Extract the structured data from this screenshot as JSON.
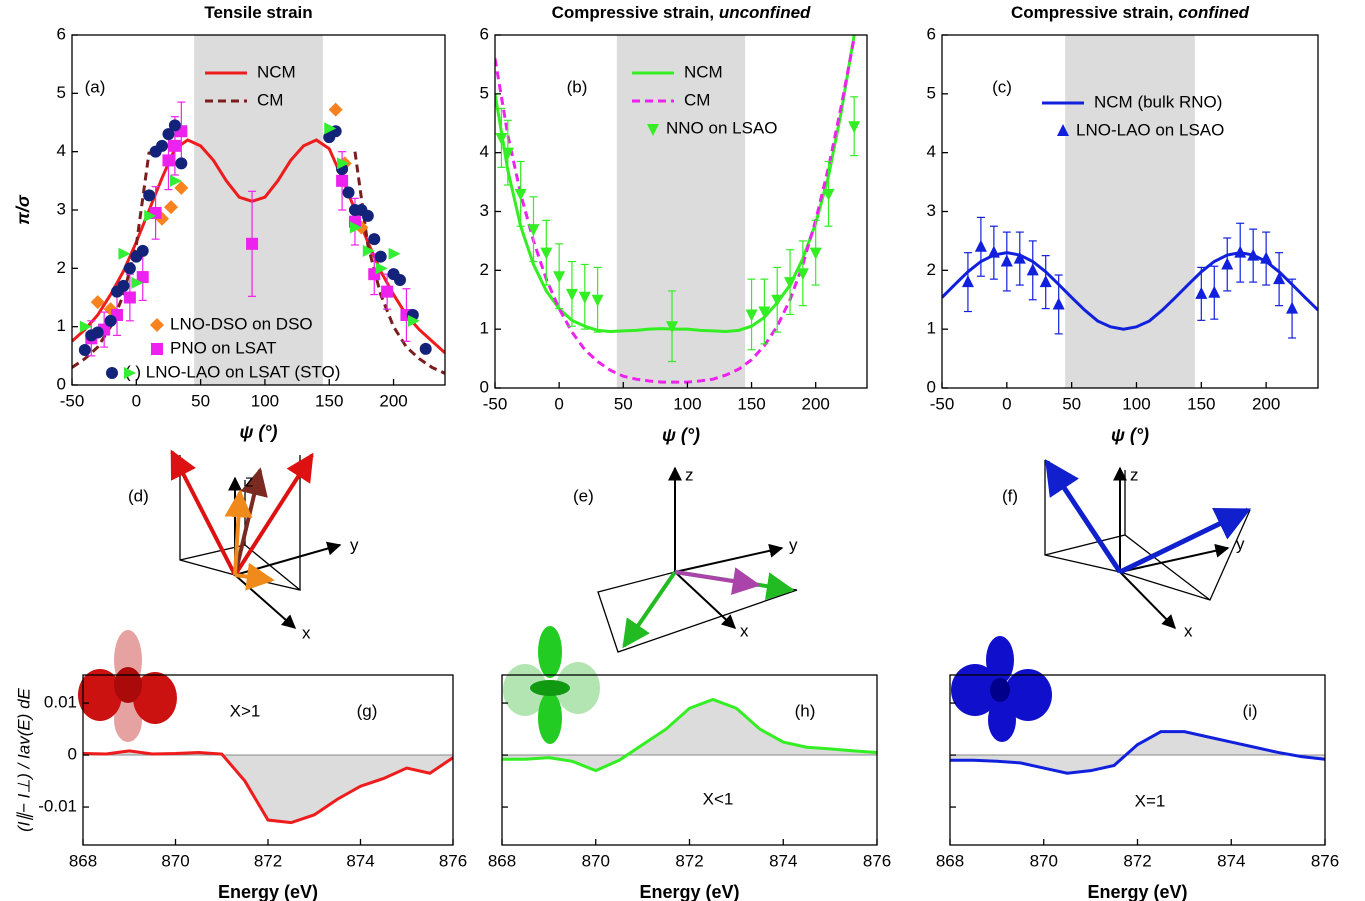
{
  "chart_data": [
    {
      "type": "line",
      "title": "Tensile strain",
      "panel_label": "(a)",
      "x_label": "ψ (°)",
      "y_label": "π/σ",
      "xlim": [
        -50,
        240
      ],
      "ylim": [
        0,
        6
      ],
      "xticks": [
        -50,
        0,
        50,
        100,
        150,
        200
      ],
      "yticks": [
        0,
        1,
        2,
        3,
        4,
        5,
        6
      ],
      "shade": [
        45,
        145
      ],
      "shade_color": "#dcdcdc",
      "x": [
        -50,
        -40,
        -30,
        -20,
        -10,
        0,
        10,
        20,
        30,
        40,
        50,
        60,
        70,
        80,
        90,
        100,
        110,
        120,
        130,
        140,
        150,
        160,
        170,
        180,
        190,
        200,
        210,
        220,
        230,
        240
      ],
      "series": [
        {
          "name": "NCM",
          "color": "#ee1c1c",
          "values": [
            0.75,
            0.95,
            1.2,
            1.55,
            1.95,
            2.45,
            3.0,
            3.55,
            4.05,
            4.2,
            4.1,
            3.85,
            3.5,
            3.22,
            3.15,
            3.22,
            3.5,
            3.85,
            4.1,
            4.2,
            4.05,
            3.55,
            3.0,
            2.45,
            1.95,
            1.55,
            1.2,
            0.95,
            0.75,
            0.55
          ]
        },
        {
          "name": "CM",
          "color": "#7b1d1d",
          "dash": true,
          "values": [
            0.3,
            0.45,
            0.65,
            1.0,
            1.55,
            2.4,
            4.0,
            null,
            null,
            null,
            null,
            null,
            null,
            null,
            null,
            null,
            null,
            null,
            null,
            null,
            null,
            null,
            4.0,
            2.4,
            1.55,
            1.0,
            0.65,
            0.45,
            0.3,
            0.2
          ]
        },
        {
          "name": "LNO-DSO on DSO",
          "color": "#f7821e",
          "marker": "diamond",
          "x": [
            -30,
            -20,
            20,
            27,
            35,
            155,
            162,
            175
          ],
          "values": [
            1.42,
            1.3,
            2.85,
            3.05,
            3.38,
            4.72,
            3.8,
            2.7
          ]
        },
        {
          "name": "PNO on LSAT",
          "color": "#ee22ee",
          "marker": "square",
          "x": [
            -35,
            -25,
            -15,
            -5,
            5,
            15,
            25,
            30,
            35,
            90,
            160,
            170,
            185,
            195,
            210
          ],
          "values": [
            0.8,
            0.95,
            1.2,
            1.5,
            1.85,
            2.95,
            3.85,
            4.1,
            4.35,
            2.42,
            3.5,
            2.8,
            1.9,
            1.6,
            1.2
          ],
          "errors": [
            0.3,
            0.3,
            0.35,
            0.4,
            0.4,
            0.45,
            0.5,
            0.5,
            0.5,
            0.9,
            0.5,
            0.4,
            0.35,
            0.3,
            0.45
          ]
        },
        {
          "name": "(    ) LNO-LAO on LSAT (STO)",
          "color": "#13237a",
          "marker": "circle",
          "x": [
            -40,
            -35,
            -30,
            -20,
            -15,
            -10,
            -5,
            0,
            5,
            10,
            15,
            20,
            25,
            30,
            35,
            150,
            155,
            160,
            165,
            170,
            175,
            180,
            185,
            190,
            200,
            205,
            215,
            225
          ],
          "values": [
            0.6,
            0.85,
            0.9,
            1.1,
            1.6,
            1.7,
            2.0,
            2.2,
            2.3,
            3.25,
            4.0,
            4.1,
            4.3,
            4.45,
            3.8,
            4.25,
            4.35,
            3.7,
            3.3,
            3.0,
            3.0,
            2.9,
            2.5,
            2.2,
            1.9,
            1.8,
            1.2,
            0.62
          ]
        },
        {
          "color": "#33ee33",
          "marker": "triangle-right",
          "x": [
            -40,
            -10,
            0,
            10,
            30,
            150,
            160,
            170,
            180,
            190,
            200,
            215
          ],
          "values": [
            1.0,
            2.25,
            1.75,
            2.9,
            3.5,
            4.4,
            3.8,
            2.7,
            2.3,
            2.0,
            2.25,
            1.1
          ]
        }
      ]
    },
    {
      "type": "line",
      "title": "Compressive strain, ",
      "title_emphasis": "unconfined",
      "panel_label": "(b)",
      "x_label": "ψ (°)",
      "xlim": [
        -50,
        240
      ],
      "ylim": [
        0,
        6
      ],
      "xticks": [
        -50,
        0,
        50,
        100,
        150,
        200
      ],
      "yticks": [
        0,
        1,
        2,
        3,
        4,
        5,
        6
      ],
      "shade": [
        45,
        145
      ],
      "shade_color": "#dcdcdc",
      "x": [
        -50,
        -40,
        -30,
        -20,
        -10,
        0,
        10,
        20,
        30,
        40,
        50,
        60,
        70,
        80,
        90,
        100,
        110,
        120,
        130,
        140,
        150,
        160,
        170,
        180,
        190,
        200,
        210,
        220,
        230,
        240
      ],
      "series": [
        {
          "name": "NCM",
          "color": "#33ee22",
          "values": [
            5.0,
            3.7,
            2.75,
            2.1,
            1.65,
            1.35,
            1.15,
            1.05,
            0.98,
            0.96,
            0.97,
            0.98,
            1.0,
            1.01,
            1.0,
            1.0,
            0.98,
            0.97,
            0.96,
            0.98,
            1.05,
            1.2,
            1.45,
            1.75,
            2.2,
            2.8,
            3.6,
            4.7,
            6.0,
            null
          ]
        },
        {
          "name": "CM",
          "color": "#ee22ee",
          "dash": true,
          "values": [
            5.6,
            4.3,
            3.3,
            2.5,
            1.85,
            1.35,
            0.95,
            0.65,
            0.45,
            0.3,
            0.2,
            0.15,
            0.12,
            0.1,
            0.1,
            0.1,
            0.12,
            0.15,
            0.22,
            0.32,
            0.48,
            0.72,
            1.05,
            1.5,
            2.1,
            2.85,
            3.75,
            4.8,
            5.95,
            null
          ]
        },
        {
          "name": "NNO on LSAO",
          "color": "#33ee22",
          "marker": "triangle-down",
          "x": [
            -45,
            -40,
            -30,
            -20,
            -10,
            0,
            10,
            20,
            30,
            88,
            150,
            160,
            170,
            180,
            190,
            200,
            210,
            230
          ],
          "values": [
            4.25,
            4.0,
            3.3,
            2.7,
            2.3,
            1.9,
            1.6,
            1.55,
            1.5,
            1.05,
            1.25,
            1.3,
            1.5,
            1.8,
            1.95,
            2.3,
            3.3,
            4.45
          ],
          "errors": [
            0.5,
            0.55,
            0.55,
            0.55,
            0.55,
            0.55,
            0.55,
            0.55,
            0.55,
            0.6,
            0.6,
            0.55,
            0.55,
            0.55,
            0.55,
            0.55,
            0.55,
            0.5
          ]
        }
      ]
    },
    {
      "type": "line",
      "title": "Compressive strain, ",
      "title_emphasis": "confined",
      "panel_label": "(c)",
      "x_label": "ψ (°)",
      "xlim": [
        -50,
        240
      ],
      "ylim": [
        0,
        6
      ],
      "xticks": [
        -50,
        0,
        50,
        100,
        150,
        200
      ],
      "yticks": [
        0,
        1,
        2,
        3,
        4,
        5,
        6
      ],
      "shade": [
        45,
        145
      ],
      "shade_color": "#dcdcdc",
      "x": [
        -50,
        -40,
        -30,
        -20,
        -10,
        0,
        10,
        20,
        30,
        40,
        50,
        60,
        70,
        80,
        90,
        100,
        110,
        120,
        130,
        140,
        150,
        160,
        170,
        180,
        190,
        200,
        210,
        220,
        230,
        240
      ],
      "series": [
        {
          "name": "NCM (bulk RNO)",
          "color": "#1020dd",
          "values": [
            1.54,
            1.76,
            1.975,
            2.15,
            2.26,
            2.3,
            2.26,
            2.15,
            1.975,
            1.76,
            1.54,
            1.325,
            1.14,
            1.04,
            1.0,
            1.04,
            1.14,
            1.325,
            1.54,
            1.76,
            1.975,
            2.15,
            2.26,
            2.3,
            2.26,
            2.15,
            1.975,
            1.76,
            1.54,
            1.325
          ]
        },
        {
          "name": "LNO-LAO on LSAO",
          "color": "#1020dd",
          "marker": "triangle-up",
          "x": [
            -30,
            -20,
            -10,
            0,
            10,
            20,
            30,
            40,
            150,
            160,
            170,
            180,
            190,
            200,
            210,
            220
          ],
          "values": [
            1.8,
            2.4,
            2.3,
            2.15,
            2.2,
            2.0,
            1.8,
            1.42,
            1.6,
            1.62,
            2.1,
            2.3,
            2.25,
            2.2,
            1.85,
            1.35
          ],
          "errors": [
            0.5,
            0.5,
            0.45,
            0.5,
            0.45,
            0.5,
            0.45,
            0.5,
            0.45,
            0.45,
            0.45,
            0.5,
            0.45,
            0.45,
            0.45,
            0.5
          ]
        }
      ]
    },
    {
      "type": "line",
      "panel_label": "(g)",
      "annotation": "X>1",
      "x_label": "Energy (eV)",
      "y_label": "(I∥− I⊥) / Iav(E) dE",
      "xlim": [
        868,
        876
      ],
      "ylim": [
        -0.0173,
        0.0154
      ],
      "xticks": [
        868,
        870,
        872,
        874,
        876
      ],
      "yticks": [
        -0.01,
        0,
        0.01
      ],
      "fill_to": 0,
      "fill_color": "#dcdcdc",
      "x": [
        868,
        868.5,
        869,
        869.5,
        870,
        870.5,
        871,
        871.5,
        872,
        872.5,
        873,
        873.5,
        874,
        874.5,
        875,
        875.5,
        876
      ],
      "series": [
        {
          "color": "#ee1c1c",
          "values": [
            0.0003,
            0.0002,
            0.0008,
            0.0002,
            0.0003,
            0.0005,
            0.0002,
            -0.005,
            -0.0125,
            -0.013,
            -0.0115,
            -0.0085,
            -0.006,
            -0.0045,
            -0.0025,
            -0.0035,
            -0.0005
          ]
        }
      ]
    },
    {
      "type": "line",
      "panel_label": "(h)",
      "annotation": "X<1",
      "x_label": "Energy (eV)",
      "ytick_labels": false,
      "xlim": [
        868,
        876
      ],
      "ylim": [
        -0.0173,
        0.0154
      ],
      "xticks": [
        868,
        870,
        872,
        874,
        876
      ],
      "yticks": [
        -0.01,
        0,
        0.01
      ],
      "fill_to": 0,
      "fill_color": "#dcdcdc",
      "x": [
        868,
        868.5,
        869,
        869.5,
        870,
        870.5,
        871,
        871.5,
        872,
        872.5,
        873,
        873.5,
        874,
        874.5,
        875,
        875.5,
        876
      ],
      "series": [
        {
          "color": "#33ee22",
          "values": [
            -0.0008,
            -0.0008,
            -0.0005,
            -0.0012,
            -0.003,
            -0.001,
            0.002,
            0.005,
            0.009,
            0.0107,
            0.009,
            0.005,
            0.0025,
            0.0015,
            0.0012,
            0.0008,
            0.0005
          ]
        }
      ]
    },
    {
      "type": "line",
      "panel_label": "(i)",
      "annotation": "X=1",
      "x_label": "Energy (eV)",
      "ytick_labels": false,
      "xlim": [
        868,
        876
      ],
      "ylim": [
        -0.0173,
        0.0154
      ],
      "xticks": [
        868,
        870,
        872,
        874,
        876
      ],
      "yticks": [
        -0.01,
        0,
        0.01
      ],
      "fill_to": 0,
      "fill_color": "#dcdcdc",
      "x": [
        868,
        868.5,
        869,
        869.5,
        870,
        870.5,
        871,
        871.5,
        872,
        872.5,
        873,
        873.5,
        874,
        874.5,
        875,
        875.5,
        876
      ],
      "series": [
        {
          "color": "#1020dd",
          "values": [
            -0.001,
            -0.001,
            -0.0012,
            -0.0015,
            -0.0025,
            -0.0035,
            -0.003,
            -0.002,
            0.002,
            0.0045,
            0.0045,
            0.0035,
            0.0025,
            0.0015,
            0.0005,
            -0.0003,
            -0.0008
          ]
        }
      ]
    }
  ],
  "diagrams": [
    {
      "label": "(d)",
      "x": "x",
      "y": "y",
      "z": "z"
    },
    {
      "label": "(e)",
      "x": "x",
      "y": "y",
      "z": "z"
    },
    {
      "label": "(f)",
      "x": "x",
      "y": "y",
      "z": "z"
    }
  ]
}
